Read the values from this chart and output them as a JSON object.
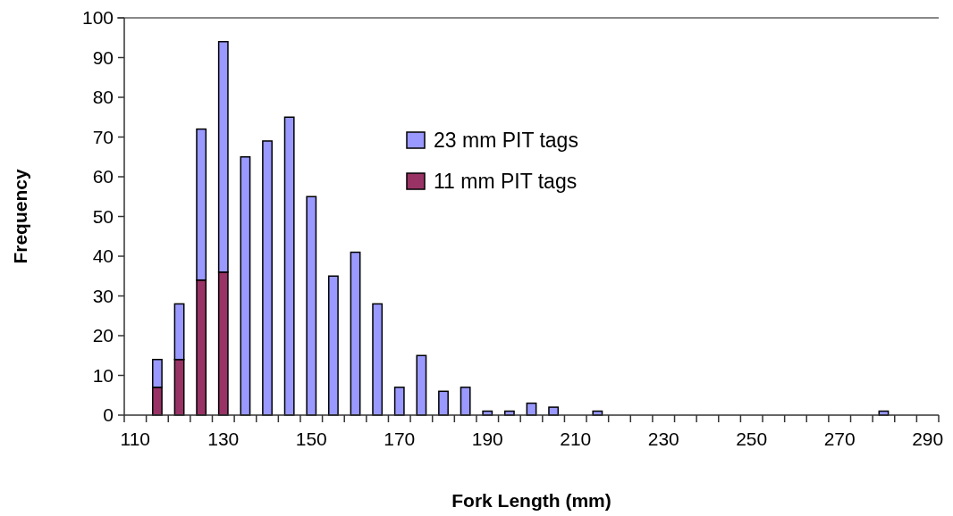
{
  "chart_data": {
    "type": "bar",
    "stacked": true,
    "xlabel": "Fork Length (mm)",
    "ylabel": "Frequency",
    "categories": [
      "110",
      null,
      null,
      null,
      "130",
      null,
      null,
      null,
      "150",
      null,
      null,
      null,
      "170",
      null,
      null,
      null,
      "190",
      null,
      null,
      null,
      "210",
      null,
      null,
      null,
      "230",
      null,
      null,
      null,
      "250",
      null,
      null,
      null,
      "270",
      null,
      null,
      null,
      "290"
    ],
    "series": [
      {
        "name": "11 mm PIT tags",
        "color": "#993366",
        "values": [
          0,
          7,
          14,
          34,
          36,
          0,
          0,
          0,
          0,
          0,
          0,
          0,
          0,
          0,
          0,
          0,
          0,
          0,
          0,
          0,
          0,
          0,
          0,
          0,
          0,
          0,
          0,
          0,
          0,
          0,
          0,
          0,
          0,
          0,
          0,
          0,
          0
        ]
      },
      {
        "name": "23 mm PIT tags",
        "color": "#9999ff",
        "values": [
          0,
          7,
          14,
          38,
          58,
          65,
          69,
          75,
          55,
          35,
          41,
          28,
          7,
          15,
          6,
          7,
          1,
          1,
          3,
          2,
          0,
          1,
          0,
          0,
          0,
          0,
          0,
          0,
          0,
          0,
          0,
          0,
          0,
          0,
          1,
          0,
          0
        ]
      }
    ],
    "ylim": [
      0,
      100
    ],
    "yticks": [
      0,
      10,
      20,
      30,
      40,
      50,
      60,
      70,
      80,
      90,
      100
    ],
    "grid": false,
    "legend": "top"
  }
}
